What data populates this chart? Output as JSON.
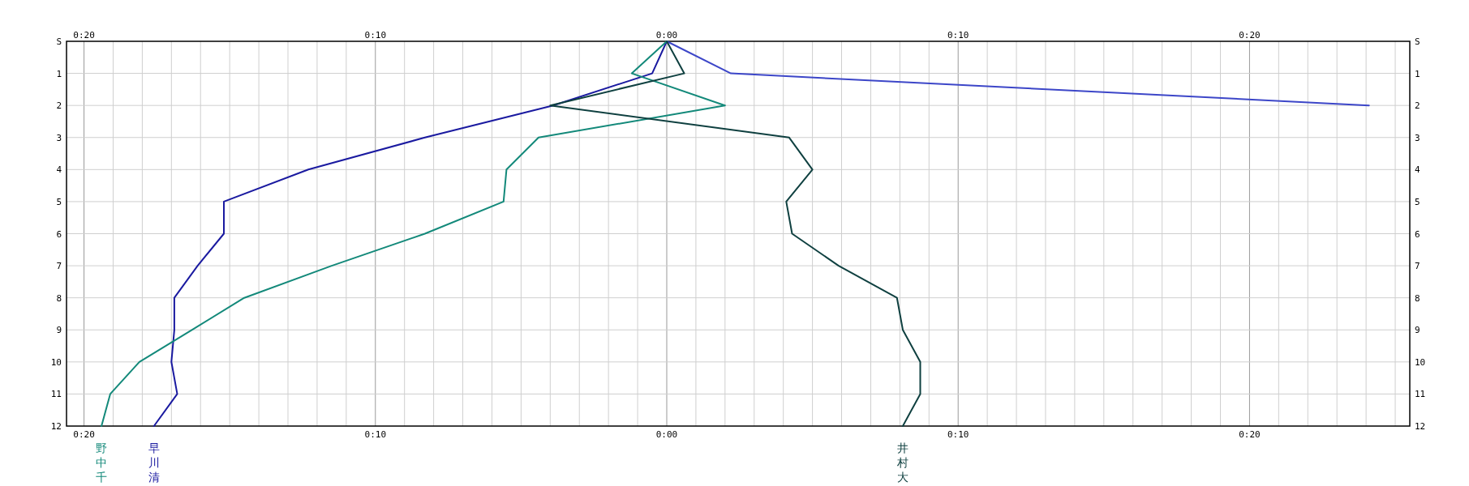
{
  "chart_data": {
    "type": "line",
    "orientation": "horizontal",
    "categories": [
      "S",
      "1",
      "2",
      "3",
      "4",
      "5",
      "6",
      "7",
      "8",
      "9",
      "10",
      "11",
      "12"
    ],
    "series": [
      {
        "color": "#3c46c8",
        "values": [
          0,
          2.2,
          24.1,
          null,
          null,
          null,
          null,
          null,
          null,
          null,
          null,
          null,
          null
        ]
      },
      {
        "name": "早川清",
        "color": "#1a1aa0",
        "values": [
          0,
          -0.5,
          -3.9,
          -8.3,
          -12.3,
          -15.2,
          -15.2,
          -16.1,
          -16.9,
          -16.9,
          -17.0,
          -16.8,
          -17.6
        ]
      },
      {
        "name": "野中千",
        "color": "#13897a",
        "values": [
          0,
          -1.2,
          2.0,
          -4.4,
          -5.5,
          -5.6,
          -8.3,
          -11.5,
          -14.5,
          -16.3,
          -18.1,
          -19.1,
          -19.4
        ]
      },
      {
        "name": "井村大",
        "color": "#0f4040",
        "values": [
          0,
          0.6,
          -4.0,
          4.2,
          5.0,
          4.1,
          4.3,
          5.9,
          7.9,
          8.1,
          8.7,
          8.7,
          8.1
        ]
      }
    ],
    "xlim": [
      -20.6,
      25.5
    ],
    "xticks": [
      {
        "value": -20,
        "label": "0:20"
      },
      {
        "value": -19,
        "label": null
      },
      {
        "value": -18,
        "label": null
      },
      {
        "value": -17,
        "label": null
      },
      {
        "value": -16,
        "label": null
      },
      {
        "value": -15,
        "label": null
      },
      {
        "value": -14,
        "label": null
      },
      {
        "value": -13,
        "label": null
      },
      {
        "value": -12,
        "label": null
      },
      {
        "value": -11,
        "label": null
      },
      {
        "value": -10,
        "label": "0:10"
      },
      {
        "value": -9,
        "label": null
      },
      {
        "value": -8,
        "label": null
      },
      {
        "value": -7,
        "label": null
      },
      {
        "value": -6,
        "label": null
      },
      {
        "value": -5,
        "label": null
      },
      {
        "value": -4,
        "label": null
      },
      {
        "value": -3,
        "label": null
      },
      {
        "value": -2,
        "label": null
      },
      {
        "value": -1,
        "label": null
      },
      {
        "value": 0,
        "label": "0:00"
      },
      {
        "value": 1,
        "label": null
      },
      {
        "value": 2,
        "label": null
      },
      {
        "value": 3,
        "label": null
      },
      {
        "value": 4,
        "label": null
      },
      {
        "value": 5,
        "label": null
      },
      {
        "value": 6,
        "label": null
      },
      {
        "value": 7,
        "label": null
      },
      {
        "value": 8,
        "label": null
      },
      {
        "value": 9,
        "label": null
      },
      {
        "value": 10,
        "label": "0:10"
      },
      {
        "value": 11,
        "label": null
      },
      {
        "value": 12,
        "label": null
      },
      {
        "value": 13,
        "label": null
      },
      {
        "value": 14,
        "label": null
      },
      {
        "value": 15,
        "label": null
      },
      {
        "value": 16,
        "label": null
      },
      {
        "value": 17,
        "label": null
      },
      {
        "value": 18,
        "label": null
      },
      {
        "value": 19,
        "label": null
      },
      {
        "value": 20,
        "label": "0:20"
      },
      {
        "value": 21,
        "label": null
      },
      {
        "value": 22,
        "label": null
      },
      {
        "value": 23,
        "label": null
      },
      {
        "value": 24,
        "label": null
      },
      {
        "value": 25,
        "label": null
      }
    ],
    "x2lim": [
      -20.6,
      25.5
    ],
    "x2ticks": [
      {
        "value": -20,
        "label": "0:20"
      },
      {
        "value": -10,
        "label": "0:10"
      },
      {
        "value": 0,
        "label": "0:00"
      },
      {
        "value": 10,
        "label": "0:10"
      },
      {
        "value": 20,
        "label": "0:20"
      }
    ],
    "grid": true
  }
}
